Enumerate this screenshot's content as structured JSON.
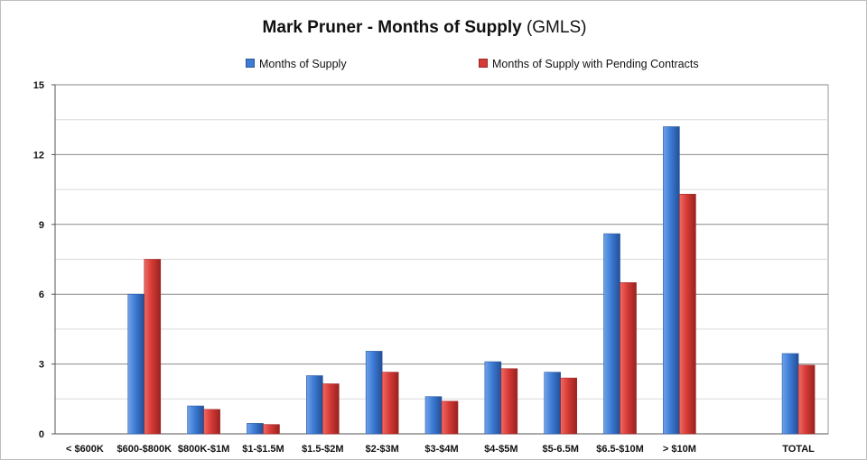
{
  "chart_data": {
    "type": "bar",
    "title": "Mark Pruner - Months of Supply",
    "subtitle": "(GMLS)",
    "categories": [
      "< $600K",
      "$600-$800K",
      "$800K-$1M",
      "$1-$1.5M",
      "$1.5-$2M",
      "$2-$3M",
      "$3-$4M",
      "$4-$5M",
      "$5-6.5M",
      "$6.5-$10M",
      "> $10M",
      "",
      "TOTAL"
    ],
    "series": [
      {
        "name": "Months of Supply",
        "color": "#3d7bd4",
        "values": [
          0,
          6.0,
          1.2,
          0.45,
          2.5,
          3.55,
          1.6,
          3.1,
          2.65,
          8.6,
          13.2,
          null,
          3.45
        ]
      },
      {
        "name": "Months of Supply with Pending Contracts",
        "color": "#d63a36",
        "values": [
          0,
          7.5,
          1.05,
          0.4,
          2.15,
          2.65,
          1.4,
          2.8,
          2.4,
          6.5,
          10.3,
          null,
          2.95
        ]
      }
    ],
    "ylim": [
      0,
      15
    ],
    "yticks": [
      0,
      3,
      6,
      9,
      12,
      15
    ],
    "grid": true,
    "legend_position": "top"
  }
}
